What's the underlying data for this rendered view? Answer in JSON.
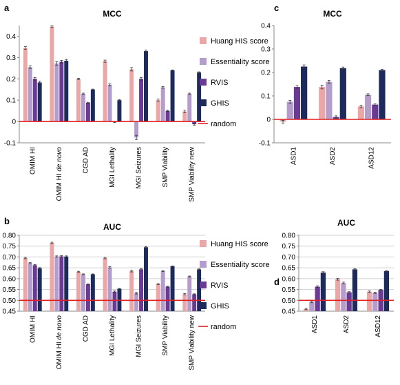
{
  "figure": {
    "title": ""
  },
  "colors": {
    "huang": "#eaa7a8",
    "essentiality": "#b49ccb",
    "rvis": "#6b3a93",
    "ghis": "#1c2a5c",
    "random": "#e02020",
    "axis": "#888888",
    "grid": "#d0d0d0"
  },
  "chart_data": [
    {
      "panel": "a",
      "type": "bar",
      "title": "MCC",
      "xlabel": "",
      "ylabel": "",
      "ylim": [
        -0.1,
        0.45
      ],
      "yticks": [
        -0.1,
        0,
        0.1,
        0.2,
        0.3,
        0.4
      ],
      "ytick_labels": [
        "-0.1",
        "0",
        "0.1",
        "0.2",
        "0.3",
        "0.4"
      ],
      "categories": [
        "OMIM HI",
        "OMIM HI de novo",
        "CGD AD",
        "MGI Lethality",
        "MGI Seizures",
        "SMP Viability",
        "SMP Viability new"
      ],
      "series": [
        {
          "name": "Huang HIS score",
          "color_key": "huang",
          "values": [
            0.345,
            0.445,
            0.2,
            0.283,
            0.245,
            0.1,
            0.047
          ],
          "errors": [
            0.006,
            0.004,
            0.003,
            0.005,
            0.008,
            0.005,
            0.006
          ]
        },
        {
          "name": "Essentiality score",
          "color_key": "essentiality",
          "values": [
            0.255,
            0.272,
            0.13,
            0.172,
            -0.075,
            0.16,
            0.13
          ],
          "errors": [
            0.006,
            0.008,
            0.003,
            0.004,
            0.01,
            0.004,
            0.003
          ]
        },
        {
          "name": "RVIS",
          "color_key": "rvis",
          "values": [
            0.2,
            0.28,
            0.088,
            -0.002,
            0.2,
            0.05,
            -0.013
          ],
          "errors": [
            0.006,
            0.007,
            0.002,
            0.003,
            0.006,
            0.003,
            0.004
          ]
        },
        {
          "name": "GHIS",
          "color_key": "ghis",
          "values": [
            0.183,
            0.285,
            0.15,
            0.1,
            0.33,
            0.24,
            0.23
          ],
          "errors": [
            0.006,
            0.006,
            0.002,
            0.003,
            0.005,
            0.002,
            0.003
          ]
        }
      ],
      "reference_line": {
        "name": "random",
        "value": 0
      },
      "legend_position": "right",
      "grid": false
    },
    {
      "panel": "c",
      "type": "bar",
      "title": "MCC",
      "xlabel": "",
      "ylabel": "",
      "ylim": [
        -0.1,
        0.4
      ],
      "yticks": [
        -0.1,
        0,
        0.1,
        0.2,
        0.3,
        0.4
      ],
      "ytick_labels": [
        "-0.1",
        "0",
        "0.1",
        "0.2",
        "0.3",
        "0.4"
      ],
      "categories": [
        "ASD1",
        "ASD2",
        "ASD12"
      ],
      "series": [
        {
          "name": "Huang HIS score",
          "color_key": "huang",
          "values": [
            -0.01,
            0.138,
            0.055
          ],
          "errors": [
            0.006,
            0.008,
            0.005
          ]
        },
        {
          "name": "Essentiality score",
          "color_key": "essentiality",
          "values": [
            0.075,
            0.16,
            0.105
          ],
          "errors": [
            0.006,
            0.006,
            0.004
          ]
        },
        {
          "name": "RVIS",
          "color_key": "rvis",
          "values": [
            0.138,
            0.01,
            0.063
          ],
          "errors": [
            0.006,
            0.005,
            0.003
          ]
        },
        {
          "name": "GHIS",
          "color_key": "ghis",
          "values": [
            0.225,
            0.218,
            0.21
          ],
          "errors": [
            0.007,
            0.005,
            0.003
          ]
        }
      ],
      "reference_line": {
        "name": "random",
        "value": 0
      },
      "grid": false
    },
    {
      "panel": "b",
      "type": "bar",
      "title": "AUC",
      "xlabel": "",
      "ylabel": "",
      "ylim": [
        0.45,
        0.8
      ],
      "yticks": [
        0.45,
        0.5,
        0.55,
        0.6,
        0.65,
        0.7,
        0.75,
        0.8
      ],
      "ytick_labels": [
        "0.45",
        "0.50",
        "0.55",
        "0.60",
        "0.65",
        "0.70",
        "0.75",
        "0.80"
      ],
      "categories": [
        "OMIM HI",
        "OMIM HI de novo",
        "CGD AD",
        "MGI Lethality",
        "MGI Seizures",
        "SMP Viability",
        "SMP Viability new"
      ],
      "series": [
        {
          "name": "Huang HIS score",
          "color_key": "huang",
          "values": [
            0.695,
            0.765,
            0.632,
            0.695,
            0.635,
            0.575,
            0.528
          ],
          "errors": [
            0.003,
            0.003,
            0.002,
            0.003,
            0.004,
            0.002,
            0.003
          ]
        },
        {
          "name": "Essentiality score",
          "color_key": "essentiality",
          "values": [
            0.672,
            0.702,
            0.62,
            0.652,
            0.533,
            0.635,
            0.61
          ],
          "errors": [
            0.003,
            0.003,
            0.002,
            0.003,
            0.004,
            0.002,
            0.002
          ]
        },
        {
          "name": "RVIS",
          "color_key": "rvis",
          "values": [
            0.662,
            0.703,
            0.574,
            0.54,
            0.643,
            0.563,
            0.528
          ],
          "errors": [
            0.003,
            0.003,
            0.002,
            0.003,
            0.003,
            0.002,
            0.002
          ]
        },
        {
          "name": "GHIS",
          "color_key": "ghis",
          "values": [
            0.648,
            0.702,
            0.62,
            0.553,
            0.745,
            0.657,
            0.643
          ],
          "errors": [
            0.003,
            0.003,
            0.002,
            0.002,
            0.003,
            0.002,
            0.002
          ]
        }
      ],
      "reference_line": {
        "name": "random",
        "value": 0.5
      },
      "legend_position": "right",
      "grid": true
    },
    {
      "panel": "d",
      "type": "bar",
      "title": "AUC",
      "xlabel": "",
      "ylabel": "",
      "ylim": [
        0.45,
        0.8
      ],
      "yticks": [
        0.45,
        0.5,
        0.55,
        0.6,
        0.65,
        0.7,
        0.75,
        0.8
      ],
      "ytick_labels": [
        "0.45",
        "0.50",
        "0.55",
        "0.60",
        "0.65",
        "0.70",
        "0.75",
        "0.80"
      ],
      "categories": [
        "ASD1",
        "ASD2",
        "ASD12"
      ],
      "series": [
        {
          "name": "Huang HIS score",
          "color_key": "huang",
          "values": [
            0.46,
            0.597,
            0.54
          ],
          "errors": [
            0.003,
            0.004,
            0.003
          ]
        },
        {
          "name": "Essentiality score",
          "color_key": "essentiality",
          "values": [
            0.493,
            0.58,
            0.535
          ],
          "errors": [
            0.004,
            0.004,
            0.003
          ]
        },
        {
          "name": "RVIS",
          "color_key": "rvis",
          "values": [
            0.563,
            0.537,
            0.548
          ],
          "errors": [
            0.004,
            0.003,
            0.002
          ]
        },
        {
          "name": "GHIS",
          "color_key": "ghis",
          "values": [
            0.628,
            0.643,
            0.635
          ],
          "errors": [
            0.004,
            0.003,
            0.002
          ]
        }
      ],
      "reference_line": {
        "name": "random",
        "value": 0.5
      },
      "grid": true
    }
  ]
}
